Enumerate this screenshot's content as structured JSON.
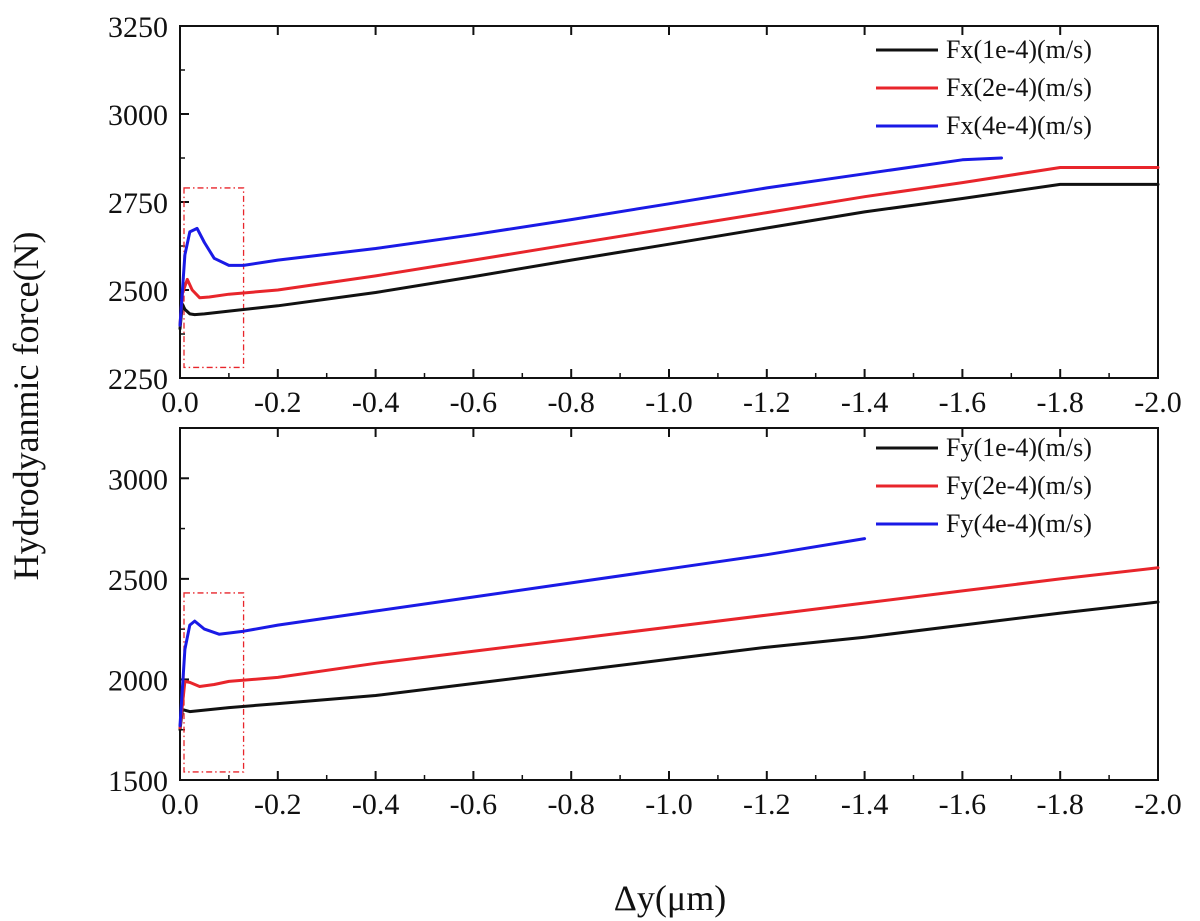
{
  "figure": {
    "ylabel": "Hydrodyanmic force(N)",
    "xlabel": "Δy(μm)"
  },
  "chart_data": [
    {
      "type": "line",
      "panel": "top",
      "xlabel": "",
      "ylabel": "Hydrodyanmic force(N)",
      "xlim": [
        0.0,
        -2.0
      ],
      "ylim": [
        2250,
        3250
      ],
      "x_ticks": [
        "0.0",
        "-0.2",
        "-0.4",
        "-0.6",
        "-0.8",
        "-1.0",
        "-1.2",
        "-1.4",
        "-1.6",
        "-1.8",
        "-2.0"
      ],
      "y_ticks": [
        "2250",
        "2500",
        "2750",
        "3000",
        "3250"
      ],
      "legend": "top-right",
      "grid": false,
      "series": [
        {
          "name": "Fx(1e-4)(m/s)",
          "color": "#111111",
          "points": [
            [
              0.0,
              2390
            ],
            [
              -0.005,
              2460
            ],
            [
              -0.01,
              2445
            ],
            [
              -0.02,
              2432
            ],
            [
              -0.03,
              2430
            ],
            [
              -0.05,
              2432
            ],
            [
              -0.1,
              2440
            ],
            [
              -0.2,
              2455
            ],
            [
              -0.4,
              2493
            ],
            [
              -0.6,
              2538
            ],
            [
              -0.8,
              2585
            ],
            [
              -1.0,
              2630
            ],
            [
              -1.2,
              2676
            ],
            [
              -1.4,
              2722
            ],
            [
              -1.6,
              2760
            ],
            [
              -1.8,
              2800
            ],
            [
              -2.0,
              2800
            ]
          ]
        },
        {
          "name": "Fx(2e-4)(m/s)",
          "color": "#e8252b",
          "points": [
            [
              0.0,
              2400
            ],
            [
              -0.005,
              2490
            ],
            [
              -0.015,
              2530
            ],
            [
              -0.025,
              2500
            ],
            [
              -0.04,
              2478
            ],
            [
              -0.06,
              2480
            ],
            [
              -0.1,
              2488
            ],
            [
              -0.2,
              2500
            ],
            [
              -0.4,
              2540
            ],
            [
              -0.6,
              2585
            ],
            [
              -0.8,
              2630
            ],
            [
              -1.0,
              2675
            ],
            [
              -1.2,
              2720
            ],
            [
              -1.4,
              2765
            ],
            [
              -1.6,
              2805
            ],
            [
              -1.8,
              2848
            ],
            [
              -2.0,
              2848
            ]
          ]
        },
        {
          "name": "Fx(4e-4)(m/s)",
          "color": "#1a1ae6",
          "points": [
            [
              0.0,
              2400
            ],
            [
              -0.01,
              2600
            ],
            [
              -0.02,
              2665
            ],
            [
              -0.035,
              2675
            ],
            [
              -0.05,
              2635
            ],
            [
              -0.07,
              2590
            ],
            [
              -0.1,
              2570
            ],
            [
              -0.13,
              2570
            ],
            [
              -0.2,
              2585
            ],
            [
              -0.4,
              2618
            ],
            [
              -0.6,
              2657
            ],
            [
              -0.8,
              2700
            ],
            [
              -1.0,
              2745
            ],
            [
              -1.2,
              2790
            ],
            [
              -1.4,
              2830
            ],
            [
              -1.6,
              2870
            ],
            [
              -1.68,
              2875
            ]
          ]
        }
      ]
    },
    {
      "type": "line",
      "panel": "bottom",
      "xlabel": "Δy(μm)",
      "ylabel": "",
      "xlim": [
        0.0,
        -2.0
      ],
      "ylim": [
        1500,
        3250
      ],
      "x_ticks": [
        "0.0",
        "-0.2",
        "-0.4",
        "-0.6",
        "-0.8",
        "-1.0",
        "-1.2",
        "-1.4",
        "-1.6",
        "-1.8",
        "-2.0"
      ],
      "y_ticks": [
        "1500",
        "2000",
        "2500",
        "3000"
      ],
      "legend": "top-right",
      "grid": false,
      "series": [
        {
          "name": "Fy(1e-4)(m/s)",
          "color": "#111111",
          "points": [
            [
              0.0,
              1750
            ],
            [
              -0.005,
              1850
            ],
            [
              -0.02,
              1840
            ],
            [
              -0.04,
              1845
            ],
            [
              -0.1,
              1860
            ],
            [
              -0.2,
              1880
            ],
            [
              -0.4,
              1920
            ],
            [
              -0.6,
              1980
            ],
            [
              -0.8,
              2040
            ],
            [
              -1.0,
              2100
            ],
            [
              -1.2,
              2160
            ],
            [
              -1.4,
              2210
            ],
            [
              -1.6,
              2270
            ],
            [
              -1.8,
              2330
            ],
            [
              -2.0,
              2385
            ]
          ]
        },
        {
          "name": "Fy(2e-4)(m/s)",
          "color": "#e8252b",
          "points": [
            [
              0.0,
              1760
            ],
            [
              -0.01,
              1990
            ],
            [
              -0.02,
              1985
            ],
            [
              -0.04,
              1965
            ],
            [
              -0.07,
              1975
            ],
            [
              -0.1,
              1990
            ],
            [
              -0.2,
              2010
            ],
            [
              -0.4,
              2080
            ],
            [
              -0.6,
              2140
            ],
            [
              -0.8,
              2200
            ],
            [
              -1.0,
              2260
            ],
            [
              -1.2,
              2320
            ],
            [
              -1.4,
              2380
            ],
            [
              -1.6,
              2440
            ],
            [
              -1.8,
              2500
            ],
            [
              -2.0,
              2555
            ]
          ]
        },
        {
          "name": "Fy(4e-4)(m/s)",
          "color": "#1a1ae6",
          "points": [
            [
              0.0,
              1770
            ],
            [
              -0.01,
              2150
            ],
            [
              -0.02,
              2270
            ],
            [
              -0.03,
              2290
            ],
            [
              -0.05,
              2250
            ],
            [
              -0.08,
              2225
            ],
            [
              -0.13,
              2240
            ],
            [
              -0.2,
              2270
            ],
            [
              -0.4,
              2340
            ],
            [
              -0.6,
              2410
            ],
            [
              -0.8,
              2480
            ],
            [
              -1.0,
              2550
            ],
            [
              -1.2,
              2620
            ],
            [
              -1.4,
              2700
            ]
          ]
        }
      ]
    }
  ]
}
